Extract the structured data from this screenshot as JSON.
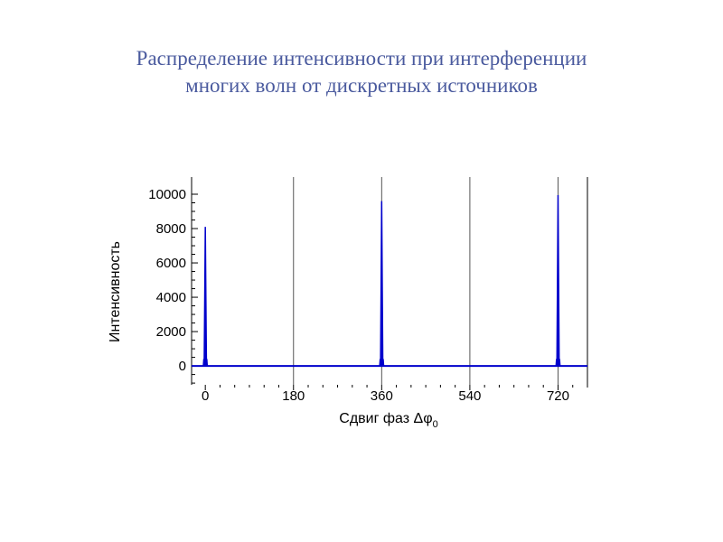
{
  "slide": {
    "title_line1": "Распределение интенсивности при интерференции",
    "title_line2": "многих волн от дискретных источников"
  },
  "chart_data": {
    "type": "line",
    "title": "Распределение интенсивности при интерференции многих волн от дискретных источников",
    "xlabel": "Сдвиг фаз Δφ",
    "xlabel_subscript": "0",
    "ylabel": "Интенсивность",
    "xlim": [
      -28,
      780
    ],
    "ylim": [
      -1100,
      11000
    ],
    "x_ticks": [
      0,
      180,
      360,
      540,
      720
    ],
    "x_tick_labels": [
      "0",
      "180",
      "360",
      "540",
      "720"
    ],
    "y_ticks": [
      0,
      2000,
      4000,
      6000,
      8000,
      10000
    ],
    "y_tick_labels": [
      "0",
      "2000",
      "4000",
      "6000",
      "8000",
      "10000"
    ],
    "grid": {
      "x": true,
      "y": false
    },
    "series_color": "#0000cc",
    "series": [
      {
        "peaks": [
          {
            "x": 0,
            "y": 8100
          },
          {
            "x": 360,
            "y": 9600
          },
          {
            "x": 720,
            "y": 9950
          }
        ],
        "baseline": 0,
        "peak_width_deg": 2.5,
        "secondary_maxima": 400
      }
    ]
  }
}
